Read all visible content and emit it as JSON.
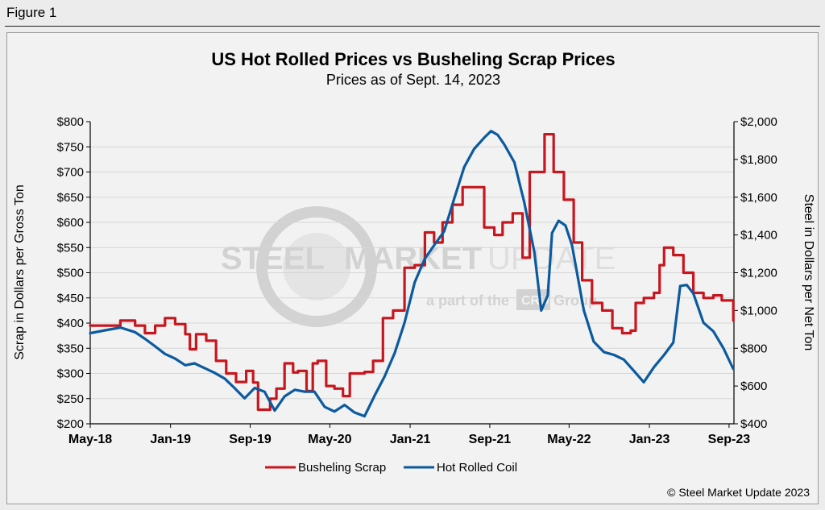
{
  "figure_label": "Figure 1",
  "copyright": "© Steel Market Update 2023",
  "watermark": {
    "brand_left": "STEEL",
    "brand_mid": "MARKET",
    "brand_right": "UPDATE",
    "tagline_a": "a part of the",
    "tagline_b": "CRU",
    "tagline_c": "Group"
  },
  "colors": {
    "scrap": "#c8161e",
    "hrc": "#0c5a9e",
    "grid": "#d6d6d6"
  },
  "chart_data": {
    "type": "line",
    "title": "US Hot Rolled Prices vs Busheling Scrap Prices",
    "subtitle": "Prices as of Sept. 14, 2023",
    "ylabel_left": "Scrap in Dollars per Gross Ton",
    "ylabel_right": "Steel in Dollars per Net Ton",
    "ylim_left": [
      200,
      800
    ],
    "ylim_right": [
      400,
      2000
    ],
    "x_range": [
      "2018-05",
      "2023-09"
    ],
    "x_ticks": [
      "May-18",
      "Jan-19",
      "Sep-19",
      "May-20",
      "Jan-21",
      "Sep-21",
      "May-22",
      "Jan-23",
      "Sep-23"
    ],
    "y_ticks_left": [
      "$200",
      "$250",
      "$300",
      "$350",
      "$400",
      "$450",
      "$500",
      "$550",
      "$600",
      "$650",
      "$700",
      "$750",
      "$800"
    ],
    "y_ticks_right": [
      "$400",
      "$600",
      "$800",
      "$1,000",
      "$1,200",
      "$1,400",
      "$1,600",
      "$1,800",
      "$2,000"
    ],
    "grid": "horizontal",
    "legend_position": "bottom",
    "series": [
      {
        "name": "Busheling Scrap",
        "axis": "left",
        "step": true,
        "points": [
          [
            "2018-05-01",
            395
          ],
          [
            "2018-08-01",
            405
          ],
          [
            "2018-09-15",
            395
          ],
          [
            "2018-10-15",
            380
          ],
          [
            "2018-11-15",
            395
          ],
          [
            "2018-12-15",
            410
          ],
          [
            "2019-01-15",
            398
          ],
          [
            "2019-02-15",
            378
          ],
          [
            "2019-03-01",
            348
          ],
          [
            "2019-03-20",
            378
          ],
          [
            "2019-04-20",
            365
          ],
          [
            "2019-05-20",
            325
          ],
          [
            "2019-06-20",
            300
          ],
          [
            "2019-07-20",
            283
          ],
          [
            "2019-08-20",
            305
          ],
          [
            "2019-09-10",
            282
          ],
          [
            "2019-09-25",
            228
          ],
          [
            "2019-11-01",
            250
          ],
          [
            "2019-11-20",
            270
          ],
          [
            "2019-12-15",
            320
          ],
          [
            "2020-01-10",
            302
          ],
          [
            "2020-01-25",
            305
          ],
          [
            "2020-02-20",
            265
          ],
          [
            "2020-03-10",
            320
          ],
          [
            "2020-03-25",
            325
          ],
          [
            "2020-04-20",
            275
          ],
          [
            "2020-05-15",
            270
          ],
          [
            "2020-06-10",
            255
          ],
          [
            "2020-07-01",
            300
          ],
          [
            "2020-08-15",
            303
          ],
          [
            "2020-09-10",
            325
          ],
          [
            "2020-10-10",
            410
          ],
          [
            "2020-11-10",
            425
          ],
          [
            "2020-12-15",
            510
          ],
          [
            "2021-01-15",
            515
          ],
          [
            "2021-02-15",
            580
          ],
          [
            "2021-03-15",
            560
          ],
          [
            "2021-04-10",
            600
          ],
          [
            "2021-05-10",
            635
          ],
          [
            "2021-06-10",
            670
          ],
          [
            "2021-07-10",
            670
          ],
          [
            "2021-08-15",
            590
          ],
          [
            "2021-09-15",
            575
          ],
          [
            "2021-10-10",
            600
          ],
          [
            "2021-11-10",
            618
          ],
          [
            "2021-12-10",
            530
          ],
          [
            "2022-01-01",
            700
          ],
          [
            "2022-02-15",
            775
          ],
          [
            "2022-03-15",
            700
          ],
          [
            "2022-04-15",
            645
          ],
          [
            "2022-05-15",
            560
          ],
          [
            "2022-06-10",
            485
          ],
          [
            "2022-07-10",
            440
          ],
          [
            "2022-08-10",
            425
          ],
          [
            "2022-09-10",
            390
          ],
          [
            "2022-10-10",
            380
          ],
          [
            "2022-11-05",
            385
          ],
          [
            "2022-11-20",
            440
          ],
          [
            "2022-12-15",
            450
          ],
          [
            "2023-01-15",
            460
          ],
          [
            "2023-02-01",
            515
          ],
          [
            "2023-02-15",
            550
          ],
          [
            "2023-03-15",
            535
          ],
          [
            "2023-04-15",
            500
          ],
          [
            "2023-05-15",
            460
          ],
          [
            "2023-06-15",
            450
          ],
          [
            "2023-07-15",
            455
          ],
          [
            "2023-08-10",
            445
          ],
          [
            "2023-09-14",
            405
          ]
        ]
      },
      {
        "name": "Hot Rolled Coil",
        "axis": "right",
        "step": false,
        "points": [
          [
            "2018-05-01",
            880
          ],
          [
            "2018-06-15",
            895
          ],
          [
            "2018-08-01",
            910
          ],
          [
            "2018-09-15",
            885
          ],
          [
            "2018-10-15",
            850
          ],
          [
            "2018-11-15",
            810
          ],
          [
            "2018-12-15",
            770
          ],
          [
            "2019-01-15",
            745
          ],
          [
            "2019-02-15",
            710
          ],
          [
            "2019-03-15",
            720
          ],
          [
            "2019-04-15",
            695
          ],
          [
            "2019-05-15",
            670
          ],
          [
            "2019-06-15",
            640
          ],
          [
            "2019-07-15",
            590
          ],
          [
            "2019-08-15",
            535
          ],
          [
            "2019-09-15",
            590
          ],
          [
            "2019-10-15",
            570
          ],
          [
            "2019-11-15",
            470
          ],
          [
            "2019-12-15",
            545
          ],
          [
            "2020-01-15",
            580
          ],
          [
            "2020-02-15",
            570
          ],
          [
            "2020-03-15",
            570
          ],
          [
            "2020-04-15",
            490
          ],
          [
            "2020-05-15",
            465
          ],
          [
            "2020-06-15",
            500
          ],
          [
            "2020-07-15",
            460
          ],
          [
            "2020-08-15",
            440
          ],
          [
            "2020-09-15",
            550
          ],
          [
            "2020-10-15",
            650
          ],
          [
            "2020-11-15",
            775
          ],
          [
            "2020-12-15",
            935
          ],
          [
            "2021-01-15",
            1150
          ],
          [
            "2021-02-15",
            1275
          ],
          [
            "2021-03-15",
            1345
          ],
          [
            "2021-04-15",
            1420
          ],
          [
            "2021-05-15",
            1590
          ],
          [
            "2021-06-15",
            1760
          ],
          [
            "2021-07-15",
            1855
          ],
          [
            "2021-08-15",
            1915
          ],
          [
            "2021-09-05",
            1950
          ],
          [
            "2021-09-25",
            1930
          ],
          [
            "2021-10-15",
            1880
          ],
          [
            "2021-11-15",
            1785
          ],
          [
            "2021-12-15",
            1575
          ],
          [
            "2022-01-15",
            1310
          ],
          [
            "2022-02-05",
            1000
          ],
          [
            "2022-02-25",
            1080
          ],
          [
            "2022-03-10",
            1410
          ],
          [
            "2022-03-30",
            1475
          ],
          [
            "2022-04-20",
            1450
          ],
          [
            "2022-05-10",
            1345
          ],
          [
            "2022-06-15",
            1000
          ],
          [
            "2022-07-15",
            835
          ],
          [
            "2022-08-15",
            780
          ],
          [
            "2022-09-15",
            765
          ],
          [
            "2022-10-15",
            740
          ],
          [
            "2022-11-15",
            680
          ],
          [
            "2022-12-15",
            620
          ],
          [
            "2023-01-15",
            700
          ],
          [
            "2023-02-15",
            765
          ],
          [
            "2023-03-15",
            830
          ],
          [
            "2023-04-05",
            1130
          ],
          [
            "2023-04-25",
            1135
          ],
          [
            "2023-05-15",
            1090
          ],
          [
            "2023-06-15",
            935
          ],
          [
            "2023-07-15",
            890
          ],
          [
            "2023-08-15",
            800
          ],
          [
            "2023-09-14",
            690
          ]
        ]
      }
    ]
  }
}
